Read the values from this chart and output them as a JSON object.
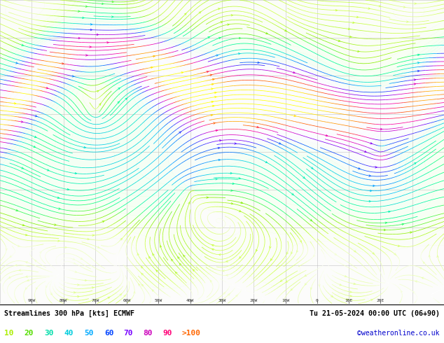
{
  "title_left": "Streamlines 300 hPa [kts] ECMWF",
  "title_right": "Tu 21-05-2024 00:00 UTC (06+90)",
  "copyright": "©weatheronline.co.uk",
  "legend_values": [
    "10",
    "20",
    "30",
    "40",
    "50",
    "60",
    "70",
    "80",
    "90",
    ">100"
  ],
  "legend_colors": [
    "#aaff00",
    "#88ee00",
    "#00ffaa",
    "#00ddcc",
    "#00aaff",
    "#0055ff",
    "#8800ff",
    "#cc00cc",
    "#ff0099",
    "#ff6600"
  ],
  "colormap_speeds": [
    0,
    10,
    20,
    30,
    40,
    50,
    60,
    70,
    80,
    90,
    100,
    120
  ],
  "colormap_hex": [
    "#ffffff",
    "#ccff44",
    "#88ee00",
    "#00ff88",
    "#00eebb",
    "#00bbff",
    "#0055ff",
    "#6600ff",
    "#cc00cc",
    "#ff0099",
    "#ff5500",
    "#ffff00"
  ],
  "bg_color": "#f8f8f8",
  "fig_width": 6.34,
  "fig_height": 4.9,
  "dpi": 100,
  "seed": 42,
  "xlim": [
    -100,
    40
  ],
  "ylim": [
    -5,
    75
  ]
}
